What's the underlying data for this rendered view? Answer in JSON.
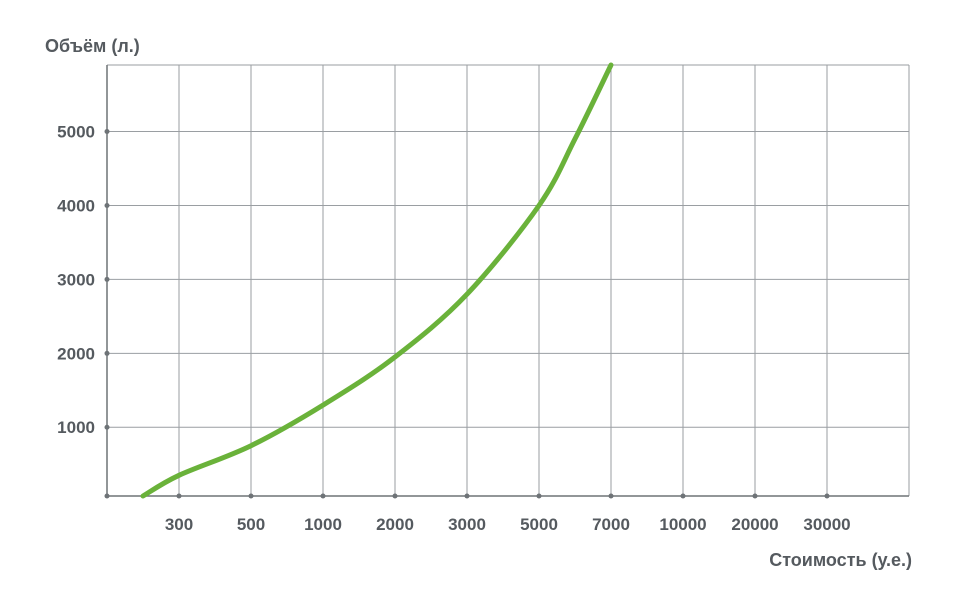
{
  "chart_data": {
    "type": "line",
    "ylabel": "Объём (л.)",
    "xlabel": "Стоимость (у.е.)",
    "x_scale": "categorical",
    "x_ticks": [
      "300",
      "500",
      "1000",
      "2000",
      "3000",
      "5000",
      "7000",
      "10000",
      "20000",
      "30000"
    ],
    "y_ticks": [
      1000,
      2000,
      3000,
      4000,
      5000
    ],
    "ylim": [
      70,
      5900
    ],
    "grid": true,
    "legend": "none",
    "series": [
      {
        "color": "#6ab23a",
        "points": [
          {
            "x": 150,
            "y": 70
          },
          {
            "x": 300,
            "y": 350
          },
          {
            "x": 500,
            "y": 750
          },
          {
            "x": 1000,
            "y": 1300
          },
          {
            "x": 2000,
            "y": 1950
          },
          {
            "x": 3000,
            "y": 2800
          },
          {
            "x": 5000,
            "y": 4000
          },
          {
            "x": 6000,
            "y": 4900
          },
          {
            "x": 7000,
            "y": 5900
          }
        ]
      }
    ]
  }
}
